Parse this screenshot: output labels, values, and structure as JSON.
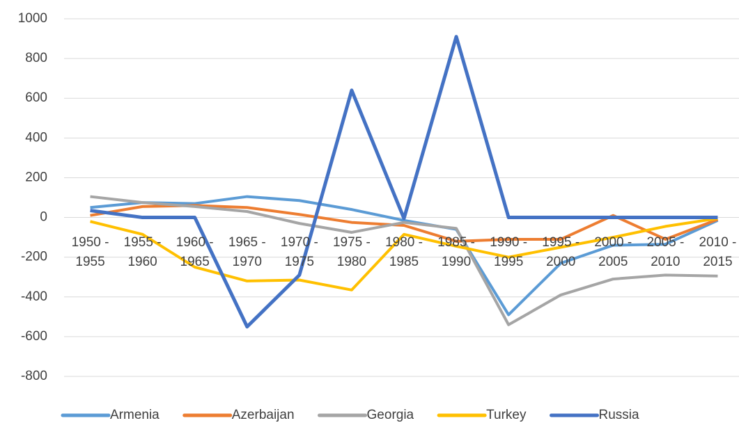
{
  "chart_data": {
    "type": "line",
    "categories": [
      "1950 - 1955",
      "1955 - 1960",
      "1960 - 1965",
      "1965 - 1970",
      "1970 - 1975",
      "1975 - 1980",
      "1980 - 1985",
      "1985 - 1990",
      "1990 - 1995",
      "1995 - 2000",
      "2000 - 2005",
      "2005 - 2010",
      "2010 - 2015"
    ],
    "series": [
      {
        "name": "Armenia",
        "color": "#5b9bd5",
        "values": [
          50,
          75,
          70,
          105,
          85,
          40,
          -15,
          -60,
          -490,
          -230,
          -140,
          -135,
          -15
        ]
      },
      {
        "name": "Azerbaijan",
        "color": "#ed7d31",
        "values": [
          10,
          55,
          60,
          50,
          15,
          -25,
          -40,
          -120,
          -110,
          -110,
          10,
          -110,
          -10
        ]
      },
      {
        "name": "Georgia",
        "color": "#a5a5a5",
        "values": [
          105,
          75,
          55,
          30,
          -30,
          -75,
          -25,
          -55,
          -540,
          -390,
          -310,
          -290,
          -295
        ]
      },
      {
        "name": "Turkey",
        "color": "#ffc000",
        "values": [
          -20,
          -85,
          -250,
          -320,
          -315,
          -365,
          -85,
          -145,
          -200,
          -150,
          -100,
          -45,
          -5
        ]
      },
      {
        "name": "Russia",
        "color": "#4472c4",
        "values": [
          35,
          0,
          0,
          -550,
          -290,
          640,
          -5,
          910,
          0,
          0,
          0,
          0,
          0
        ]
      }
    ],
    "ylim": [
      -800,
      1000
    ],
    "yticks": [
      -800,
      -600,
      -400,
      -200,
      0,
      200,
      400,
      600,
      800,
      1000
    ],
    "grid": true,
    "legend": "bottom"
  }
}
